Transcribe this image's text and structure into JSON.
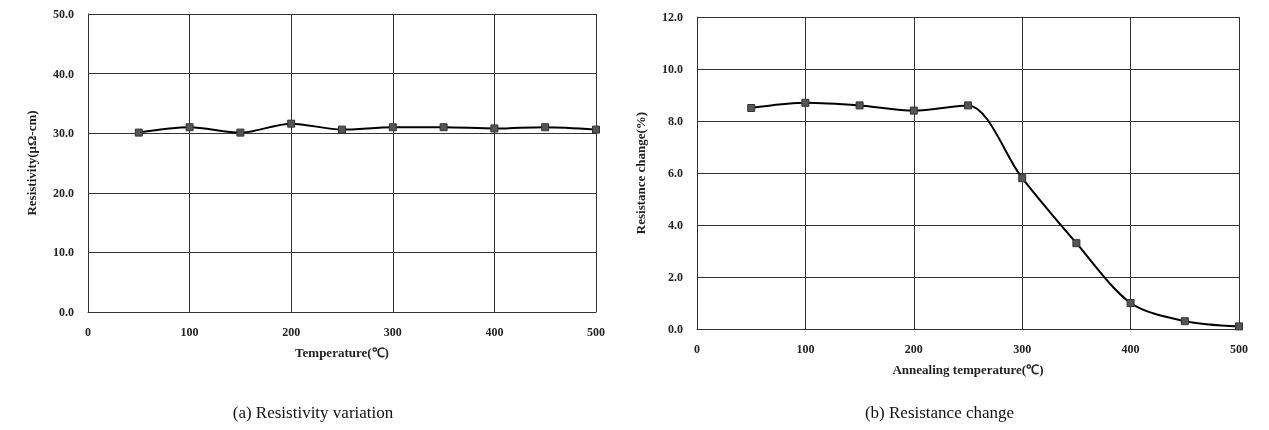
{
  "chart_data": [
    {
      "type": "line",
      "title": "(a) Resistivity variation",
      "xlabel": "Temperature(℃)",
      "ylabel": "Resistivity(μΩ-cm)",
      "x": [
        50,
        100,
        150,
        200,
        250,
        300,
        350,
        400,
        450,
        500
      ],
      "series": [
        {
          "color": "#000000",
          "values": [
            30.1,
            31.0,
            30.1,
            31.6,
            30.6,
            31.0,
            31.0,
            30.8,
            31.0,
            30.6
          ]
        }
      ],
      "xlim": [
        0,
        500
      ],
      "xticks": [
        0,
        100,
        200,
        300,
        400,
        500
      ],
      "ylim": [
        0,
        50
      ],
      "yticks": [
        {
          "value": 0,
          "label": "0.0"
        },
        {
          "value": 10,
          "label": "10.0"
        },
        {
          "value": 20,
          "label": "20.0"
        },
        {
          "value": 30,
          "label": "30.0"
        },
        {
          "value": 40,
          "label": "40.0"
        },
        {
          "value": 50,
          "label": "50.0"
        }
      ],
      "grid": true,
      "marker": "square",
      "line_style": "solid"
    },
    {
      "type": "line",
      "title": "(b) Resistance change",
      "xlabel": "Annealing temperature(℃)",
      "ylabel": "Resistance change(%)",
      "x": [
        50,
        100,
        150,
        200,
        250,
        300,
        350,
        400,
        450,
        500
      ],
      "series": [
        {
          "color": "#000000",
          "values": [
            8.5,
            8.7,
            8.6,
            8.4,
            8.6,
            5.8,
            3.3,
            1.0,
            0.3,
            0.1
          ]
        }
      ],
      "xlim": [
        0,
        500
      ],
      "xticks": [
        0,
        100,
        200,
        300,
        400,
        500
      ],
      "ylim": [
        0,
        12
      ],
      "yticks": [
        {
          "value": 0,
          "label": "0.0"
        },
        {
          "value": 2,
          "label": "2.0"
        },
        {
          "value": 4,
          "label": "4.0"
        },
        {
          "value": 6,
          "label": "6.0"
        },
        {
          "value": 8,
          "label": "8.0"
        },
        {
          "value": 10,
          "label": "10.0"
        },
        {
          "value": 12,
          "label": "12.0"
        }
      ],
      "grid": true,
      "marker": "square",
      "line_style": "solid"
    }
  ]
}
